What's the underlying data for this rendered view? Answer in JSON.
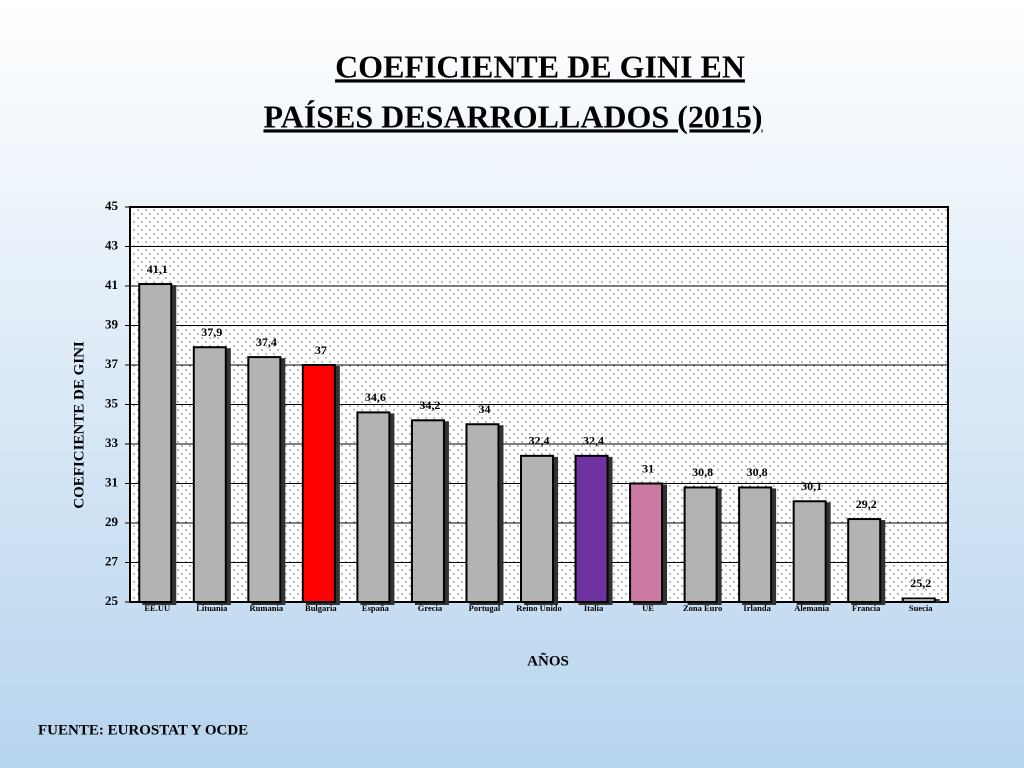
{
  "chart_data": {
    "type": "bar",
    "title": [
      "COEFICIENTE DE GINI EN",
      "PAÍSES DESARROLLADOS (2015)"
    ],
    "categories": [
      "EE.UU",
      "Lituania",
      "Rumania",
      "Bulgaria",
      "España",
      "Grecia",
      "Portugal",
      "Reino Unido",
      "Italia",
      "UE",
      "Zona Euro",
      "Irlanda",
      "Alemania",
      "Francia",
      "Suecia"
    ],
    "values": [
      41.1,
      37.9,
      37.4,
      37,
      34.6,
      34.2,
      34,
      32.4,
      32.4,
      31,
      30.8,
      30.8,
      30.1,
      29.2,
      25.2
    ],
    "value_labels": [
      "41,1",
      "37,9",
      "37,4",
      "37",
      "34,6",
      "34,2",
      "34",
      "32,4",
      "32,4",
      "31",
      "30,8",
      "30,8",
      "30,1",
      "29,2",
      "25,2"
    ],
    "colors": [
      "#b3b3b3",
      "#b3b3b3",
      "#b3b3b3",
      "#ff0000",
      "#b3b3b3",
      "#b3b3b3",
      "#b3b3b3",
      "#b3b3b3",
      "#7030a0",
      "#cc7aa3",
      "#b3b3b3",
      "#b3b3b3",
      "#b3b3b3",
      "#b3b3b3",
      "#b3b3b3"
    ],
    "ylabel": "COEFICIENTE DE GINI",
    "xlabel": "AÑOS",
    "source": "FUENTE: EUROSTAT Y OCDE",
    "ylim": [
      25,
      45
    ],
    "yticks": [
      25,
      27,
      29,
      31,
      33,
      35,
      37,
      39,
      41,
      43,
      45
    ],
    "grid": true
  }
}
